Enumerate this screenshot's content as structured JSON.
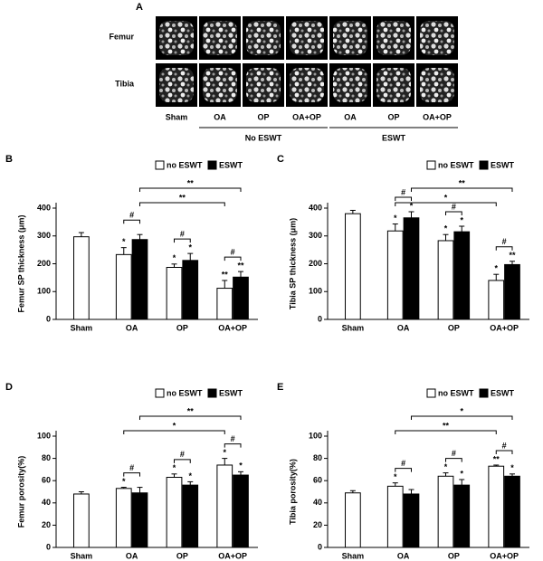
{
  "panel_a": {
    "letter": "A",
    "rows": [
      "Femur",
      "Tibia"
    ],
    "columns": [
      "Sham",
      "OA",
      "OP",
      "OA+OP",
      "OA",
      "OP",
      "OA+OP"
    ],
    "groups": [
      "No  ESWT",
      "ESWT"
    ]
  },
  "chart_data": [
    {
      "type": "bar",
      "letter": "B",
      "ylabel": "Femur SP thickness (μm)",
      "categories": [
        "Sham",
        "OA",
        "OP",
        "OA+OP"
      ],
      "series": [
        {
          "name": "no ESWT",
          "color": "#ffffff",
          "values": [
            297,
            233,
            187,
            112
          ],
          "errors": [
            15,
            25,
            12,
            28
          ],
          "markers": [
            null,
            "*",
            "*",
            "**"
          ]
        },
        {
          "name": "ESWT",
          "color": "#000000",
          "values": [
            null,
            287,
            212,
            152
          ],
          "errors": [
            null,
            18,
            25,
            20
          ],
          "markers": [
            null,
            null,
            "*",
            "**"
          ]
        }
      ],
      "ylim": [
        0,
        400
      ],
      "yticks": [
        0,
        100,
        200,
        300,
        400
      ],
      "brackets": [
        {
          "label": "#",
          "from": [
            1,
            0
          ],
          "to": [
            1,
            1
          ]
        },
        {
          "label": "#",
          "from": [
            2,
            0
          ],
          "to": [
            2,
            1
          ]
        },
        {
          "label": "#",
          "from": [
            3,
            0
          ],
          "to": [
            3,
            1
          ]
        },
        {
          "label": "**",
          "from": [
            1,
            1
          ],
          "to": [
            3,
            0
          ]
        },
        {
          "label": "**",
          "from": [
            1,
            1
          ],
          "to": [
            3,
            1
          ]
        }
      ]
    },
    {
      "type": "bar",
      "letter": "C",
      "ylabel": "Tibia SP thickness (μm)",
      "categories": [
        "Sham",
        "OA",
        "OP",
        "OA+OP"
      ],
      "series": [
        {
          "name": "no ESWT",
          "color": "#ffffff",
          "values": [
            380,
            318,
            283,
            140
          ],
          "errors": [
            12,
            25,
            22,
            22
          ],
          "markers": [
            null,
            "*",
            "*",
            "*"
          ]
        },
        {
          "name": "ESWT",
          "color": "#000000",
          "values": [
            null,
            365,
            315,
            197
          ],
          "errors": [
            null,
            22,
            20,
            12
          ],
          "markers": [
            null,
            "*",
            "*",
            "**"
          ]
        }
      ],
      "ylim": [
        0,
        400
      ],
      "yticks": [
        0,
        100,
        200,
        300,
        400
      ],
      "brackets": [
        {
          "label": "#",
          "from": [
            1,
            0
          ],
          "to": [
            1,
            1
          ]
        },
        {
          "label": "#",
          "from": [
            2,
            0
          ],
          "to": [
            2,
            1
          ]
        },
        {
          "label": "#",
          "from": [
            3,
            0
          ],
          "to": [
            3,
            1
          ]
        },
        {
          "label": "*",
          "from": [
            1,
            0
          ],
          "to": [
            3,
            0
          ]
        },
        {
          "label": "**",
          "from": [
            1,
            1
          ],
          "to": [
            3,
            1
          ]
        }
      ]
    },
    {
      "type": "bar",
      "letter": "D",
      "ylabel": "Femur  porosity(%)",
      "categories": [
        "Sham",
        "OA",
        "OP",
        "OA+OP"
      ],
      "series": [
        {
          "name": "no ESWT",
          "color": "#ffffff",
          "values": [
            48,
            53,
            63,
            74
          ],
          "errors": [
            2,
            1,
            3,
            6
          ],
          "markers": [
            null,
            "*",
            "*",
            "*"
          ]
        },
        {
          "name": "ESWT",
          "color": "#000000",
          "values": [
            null,
            49,
            56,
            65
          ],
          "errors": [
            null,
            5,
            3,
            3
          ],
          "markers": [
            null,
            null,
            "*",
            "*"
          ]
        }
      ],
      "ylim": [
        0,
        100
      ],
      "yticks": [
        0,
        20,
        40,
        60,
        80,
        100
      ],
      "brackets": [
        {
          "label": "#",
          "from": [
            1,
            0
          ],
          "to": [
            1,
            1
          ]
        },
        {
          "label": "#",
          "from": [
            2,
            0
          ],
          "to": [
            2,
            1
          ]
        },
        {
          "label": "#",
          "from": [
            3,
            0
          ],
          "to": [
            3,
            1
          ]
        },
        {
          "label": "*",
          "from": [
            1,
            0
          ],
          "to": [
            3,
            0
          ]
        },
        {
          "label": "**",
          "from": [
            1,
            1
          ],
          "to": [
            3,
            1
          ]
        }
      ]
    },
    {
      "type": "bar",
      "letter": "E",
      "ylabel": "Tibia  porosity(%)",
      "categories": [
        "Sham",
        "OA",
        "OP",
        "OA+OP"
      ],
      "series": [
        {
          "name": "no ESWT",
          "color": "#ffffff",
          "values": [
            49,
            55,
            64,
            73
          ],
          "errors": [
            2,
            3,
            3,
            1
          ],
          "markers": [
            null,
            "*",
            "*",
            "**"
          ]
        },
        {
          "name": "ESWT",
          "color": "#000000",
          "values": [
            null,
            48,
            56,
            64
          ],
          "errors": [
            null,
            4,
            5,
            2
          ],
          "markers": [
            null,
            null,
            "*",
            "*"
          ]
        }
      ],
      "ylim": [
        0,
        100
      ],
      "yticks": [
        0,
        20,
        40,
        60,
        80,
        100
      ],
      "brackets": [
        {
          "label": "#",
          "from": [
            1,
            0
          ],
          "to": [
            1,
            1
          ]
        },
        {
          "label": "#",
          "from": [
            2,
            0
          ],
          "to": [
            2,
            1
          ]
        },
        {
          "label": "#",
          "from": [
            3,
            0
          ],
          "to": [
            3,
            1
          ]
        },
        {
          "label": "**",
          "from": [
            1,
            0
          ],
          "to": [
            3,
            0
          ]
        },
        {
          "label": "*",
          "from": [
            1,
            1
          ],
          "to": [
            3,
            1
          ]
        }
      ]
    }
  ]
}
